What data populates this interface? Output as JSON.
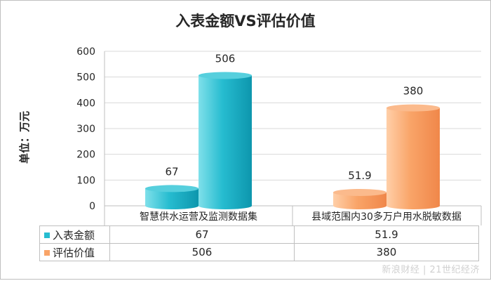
{
  "chart_data": {
    "type": "bar",
    "title": "入表金额VS评估价值",
    "ylabel": "单位：万元",
    "ylim": [
      0,
      600
    ],
    "yticks": [
      0,
      100,
      200,
      300,
      400,
      500,
      600
    ],
    "categories": [
      "智慧供水运营及监测数据集",
      "县域范围内30多万户用水脱敏数据"
    ],
    "series": [
      {
        "name": "入表金额",
        "values": [
          67,
          51.9
        ],
        "color": "#26bcd0"
      },
      {
        "name": "评估价值",
        "values": [
          506,
          380
        ],
        "color": "#f9a468"
      }
    ],
    "data_labels": [
      [
        "67",
        "506"
      ],
      [
        "51.9",
        "380"
      ]
    ],
    "grid": true,
    "data_table": true
  },
  "table": {
    "rows": [
      {
        "label": "入表金额",
        "values": [
          "67",
          "51.9"
        ],
        "color": "#26bcd0"
      },
      {
        "label": "评估价值",
        "values": [
          "506",
          "380"
        ],
        "color": "#f9a468"
      }
    ]
  },
  "watermark": "新浪财经 | 21世纪经济"
}
